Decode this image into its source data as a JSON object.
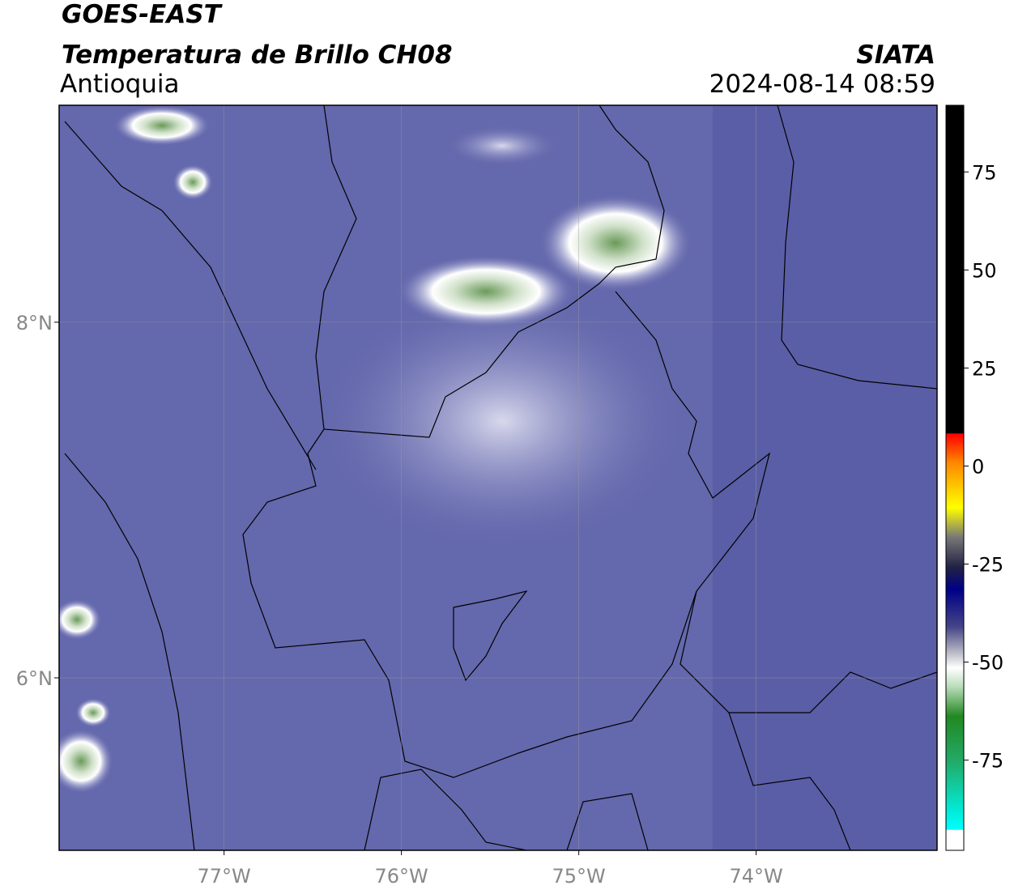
{
  "header": {
    "title": "GOES-EAST",
    "subtitle": "Temperatura de Brillo CH08",
    "region": "Antioquia",
    "source": "SIATA",
    "datetime": "2024-08-14 08:59"
  },
  "map": {
    "xlim": [
      -77.93,
      -72.98
    ],
    "ylim": [
      5.03,
      9.22
    ],
    "xticks": [
      {
        "value": -77,
        "label": "77°W"
      },
      {
        "value": -76,
        "label": "76°W"
      },
      {
        "value": -75,
        "label": "75°W"
      },
      {
        "value": -74,
        "label": "74°W"
      }
    ],
    "yticks": [
      {
        "value": 6,
        "label": "6°N"
      },
      {
        "value": 8,
        "label": "8°N"
      }
    ],
    "grid": true
  },
  "colorbar": {
    "lim": [
      -98,
      92
    ],
    "ticks": [
      -75,
      -50,
      -25,
      0,
      25,
      50,
      75
    ]
  }
}
